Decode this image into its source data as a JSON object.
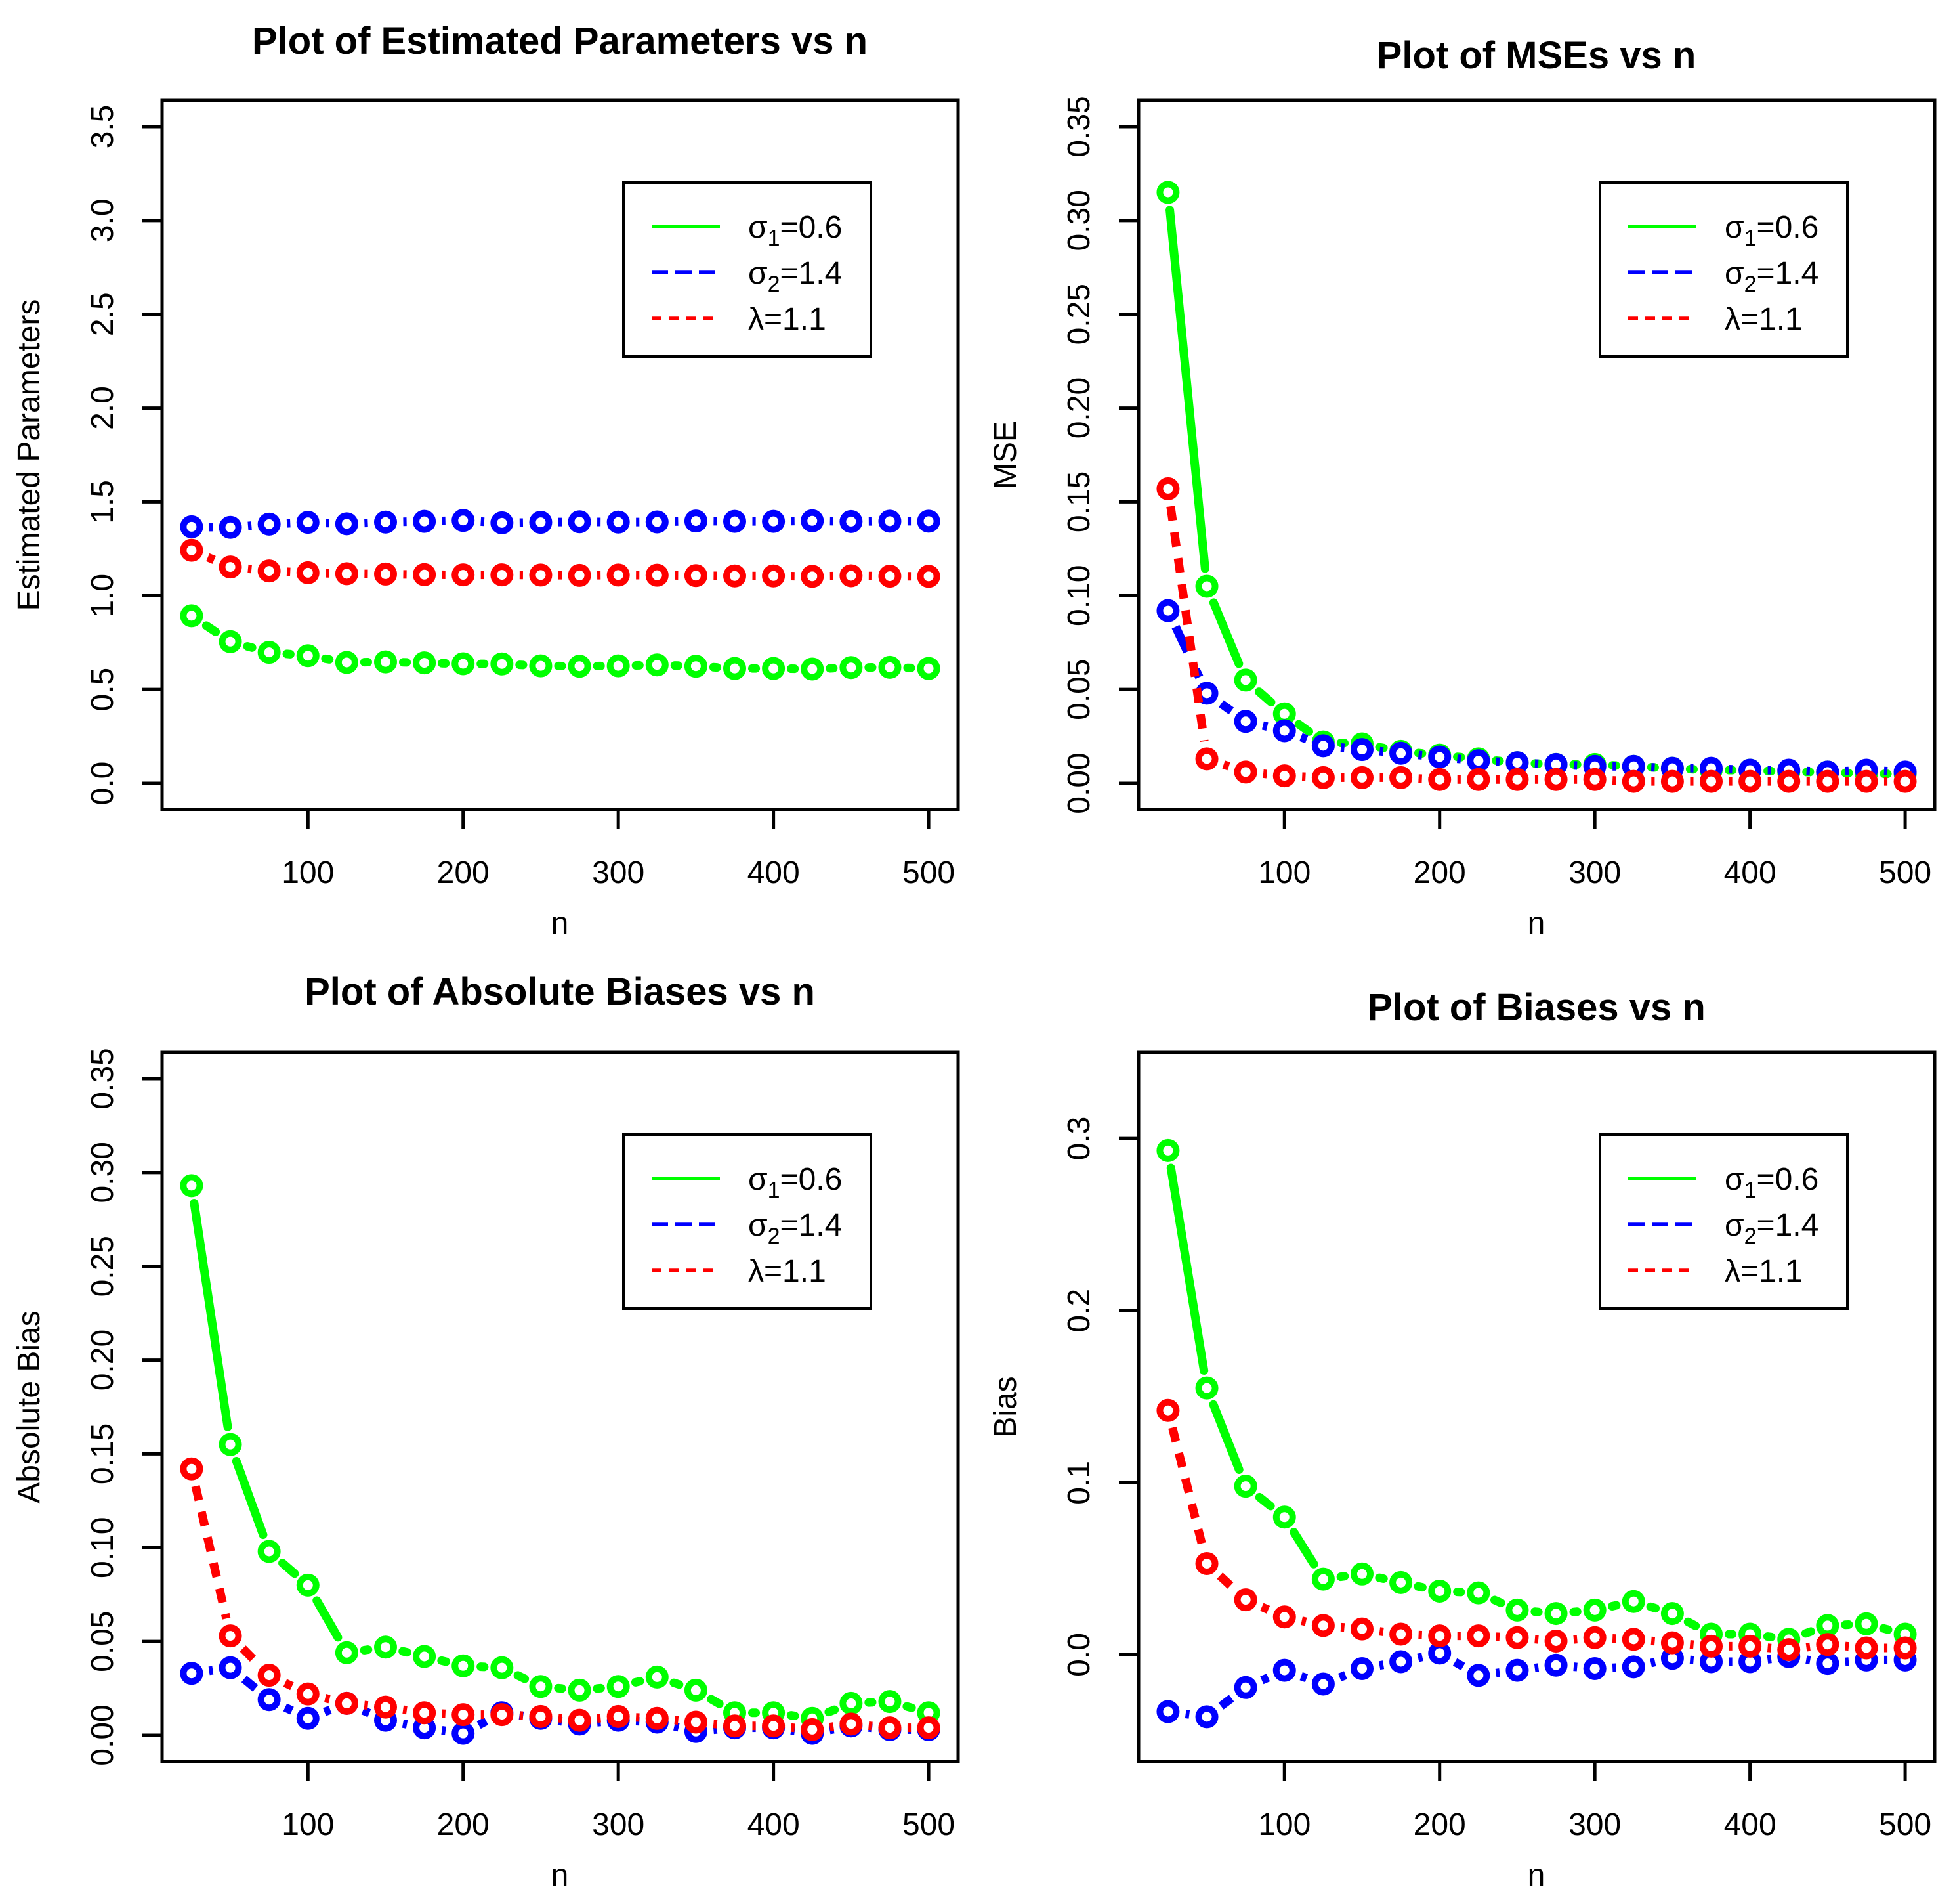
{
  "figure": {
    "background": "#ffffff",
    "text_color": "#000000",
    "series_colors": {
      "sigma1": "#00FF00",
      "sigma2": "#0000FF",
      "lambda": "#FF0000"
    }
  },
  "legend": {
    "entries": [
      {
        "id": "sigma1",
        "symbol": "σ",
        "subscript": "1",
        "value_text": "=0.6",
        "color": "#00FF00",
        "line_style": "solid"
      },
      {
        "id": "sigma2",
        "symbol": "σ",
        "subscript": "2",
        "value_text": "=1.4",
        "color": "#0000FF",
        "line_style": "dashed-long"
      },
      {
        "id": "lambda",
        "symbol": "λ",
        "subscript": "",
        "value_text": "=1.1",
        "color": "#FF0000",
        "line_style": "dashed-short"
      }
    ]
  },
  "chart_data": [
    {
      "id": "estimated-parameters",
      "type": "line",
      "title": "Plot of Estimated Parameters vs n",
      "title_baseline": 82,
      "xlabel": "n",
      "ylabel": "Estimated Parameters",
      "x": [
        25,
        50,
        75,
        100,
        125,
        150,
        175,
        200,
        225,
        250,
        275,
        300,
        325,
        350,
        375,
        400,
        425,
        450,
        475,
        500
      ],
      "xticks": [
        100,
        200,
        300,
        400,
        500
      ],
      "yticks": [
        0.0,
        0.5,
        1.0,
        1.5,
        2.0,
        2.5,
        3.0,
        3.5
      ],
      "ytick_decimals": 1,
      "ylim": [
        -0.14,
        3.64
      ],
      "grid": false,
      "legend_position": "upper-right",
      "series": [
        {
          "name": "sigma1=0.6",
          "values": [
            0.893,
            0.755,
            0.698,
            0.68,
            0.644,
            0.647,
            0.642,
            0.637,
            0.636,
            0.626,
            0.624,
            0.626,
            0.631,
            0.624,
            0.612,
            0.612,
            0.609,
            0.617,
            0.618,
            0.612
          ]
        },
        {
          "name": "sigma2=1.4",
          "values": [
            1.367,
            1.364,
            1.381,
            1.391,
            1.383,
            1.392,
            1.396,
            1.401,
            1.388,
            1.391,
            1.394,
            1.392,
            1.393,
            1.398,
            1.396,
            1.396,
            1.399,
            1.395,
            1.397,
            1.397
          ]
        },
        {
          "name": "lambda=1.1",
          "values": [
            1.242,
            1.153,
            1.132,
            1.122,
            1.117,
            1.115,
            1.112,
            1.111,
            1.111,
            1.11,
            1.108,
            1.11,
            1.109,
            1.107,
            1.105,
            1.105,
            1.103,
            1.106,
            1.104,
            1.103
          ]
        }
      ]
    },
    {
      "id": "mses",
      "type": "line",
      "title": "Plot of MSEs vs n",
      "title_baseline": 104,
      "xlabel": "n",
      "ylabel": "MSE",
      "x": [
        25,
        50,
        75,
        100,
        125,
        150,
        175,
        200,
        225,
        250,
        275,
        300,
        325,
        350,
        375,
        400,
        425,
        450,
        475,
        500
      ],
      "xticks": [
        100,
        200,
        300,
        400,
        500
      ],
      "yticks": [
        0.0,
        0.05,
        0.1,
        0.15,
        0.2,
        0.25,
        0.3,
        0.35
      ],
      "ytick_decimals": 2,
      "ylim": [
        -0.014,
        0.364
      ],
      "grid": false,
      "legend_position": "upper-right",
      "series": [
        {
          "name": "sigma1=0.6",
          "values": [
            0.315,
            0.105,
            0.055,
            0.037,
            0.022,
            0.021,
            0.017,
            0.015,
            0.013,
            0.011,
            0.01,
            0.01,
            0.009,
            0.008,
            0.007,
            0.007,
            0.006,
            0.006,
            0.005,
            0.005
          ]
        },
        {
          "name": "sigma2=1.4",
          "values": [
            0.092,
            0.048,
            0.033,
            0.028,
            0.02,
            0.018,
            0.016,
            0.014,
            0.012,
            0.011,
            0.01,
            0.009,
            0.009,
            0.008,
            0.008,
            0.007,
            0.007,
            0.006,
            0.007,
            0.006
          ]
        },
        {
          "name": "lambda=1.1",
          "values": [
            0.157,
            0.013,
            0.006,
            0.004,
            0.003,
            0.003,
            0.003,
            0.002,
            0.002,
            0.002,
            0.002,
            0.002,
            0.001,
            0.001,
            0.001,
            0.001,
            0.001,
            0.001,
            0.001,
            0.001
          ]
        }
      ]
    },
    {
      "id": "absolute-biases",
      "type": "line",
      "title": "Plot of Absolute Biases vs n",
      "title_baseline": 80,
      "xlabel": "n",
      "ylabel": "Absolute Bias",
      "x": [
        25,
        50,
        75,
        100,
        125,
        150,
        175,
        200,
        225,
        250,
        275,
        300,
        325,
        350,
        375,
        400,
        425,
        450,
        475,
        500
      ],
      "xticks": [
        100,
        200,
        300,
        400,
        500
      ],
      "yticks": [
        0.0,
        0.05,
        0.1,
        0.15,
        0.2,
        0.25,
        0.3,
        0.35
      ],
      "ytick_decimals": 2,
      "ylim": [
        -0.014,
        0.364
      ],
      "grid": false,
      "legend_position": "upper-right",
      "series": [
        {
          "name": "sigma1=0.6",
          "values": [
            0.293,
            0.155,
            0.098,
            0.08,
            0.044,
            0.047,
            0.042,
            0.037,
            0.036,
            0.026,
            0.024,
            0.026,
            0.031,
            0.024,
            0.012,
            0.012,
            0.009,
            0.017,
            0.018,
            0.012
          ]
        },
        {
          "name": "sigma2=1.4",
          "values": [
            0.033,
            0.036,
            0.019,
            0.009,
            0.017,
            0.008,
            0.004,
            0.001,
            0.012,
            0.009,
            0.006,
            0.008,
            0.007,
            0.002,
            0.004,
            0.004,
            0.001,
            0.005,
            0.003,
            0.003
          ]
        },
        {
          "name": "lambda=1.1",
          "values": [
            0.142,
            0.053,
            0.032,
            0.022,
            0.017,
            0.015,
            0.012,
            0.011,
            0.011,
            0.01,
            0.008,
            0.01,
            0.009,
            0.007,
            0.005,
            0.005,
            0.003,
            0.006,
            0.004,
            0.004
          ]
        }
      ]
    },
    {
      "id": "biases",
      "type": "line",
      "title": "Plot of Biases vs n",
      "title_baseline": 104,
      "xlabel": "n",
      "ylabel": "Bias",
      "x": [
        25,
        50,
        75,
        100,
        125,
        150,
        175,
        200,
        225,
        250,
        275,
        300,
        325,
        350,
        375,
        400,
        425,
        450,
        475,
        500
      ],
      "xticks": [
        100,
        200,
        300,
        400,
        500
      ],
      "yticks": [
        0.0,
        0.1,
        0.2,
        0.3
      ],
      "ytick_decimals": 1,
      "ylim": [
        -0.062,
        0.35
      ],
      "grid": false,
      "legend_position": "upper-right",
      "series": [
        {
          "name": "sigma1=0.6",
          "values": [
            0.293,
            0.155,
            0.098,
            0.08,
            0.044,
            0.047,
            0.042,
            0.037,
            0.036,
            0.026,
            0.024,
            0.026,
            0.031,
            0.024,
            0.012,
            0.012,
            0.009,
            0.017,
            0.018,
            0.012
          ]
        },
        {
          "name": "sigma2=1.4",
          "values": [
            -0.033,
            -0.036,
            -0.019,
            -0.009,
            -0.017,
            -0.008,
            -0.004,
            0.001,
            -0.012,
            -0.009,
            -0.006,
            -0.008,
            -0.007,
            -0.002,
            -0.004,
            -0.004,
            -0.001,
            -0.005,
            -0.003,
            -0.003
          ]
        },
        {
          "name": "lambda=1.1",
          "values": [
            0.142,
            0.053,
            0.032,
            0.022,
            0.017,
            0.015,
            0.012,
            0.011,
            0.011,
            0.01,
            0.008,
            0.01,
            0.009,
            0.007,
            0.005,
            0.005,
            0.003,
            0.006,
            0.004,
            0.004
          ]
        }
      ]
    }
  ]
}
